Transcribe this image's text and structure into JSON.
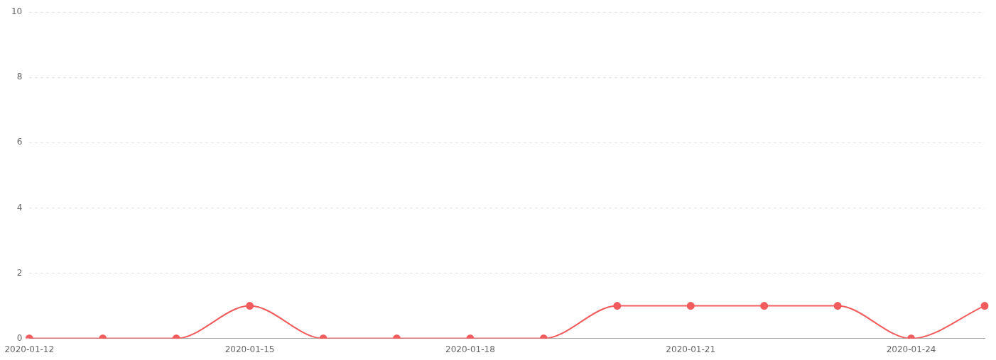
{
  "chart_data": {
    "type": "line",
    "categories": [
      "2020-01-12",
      null,
      null,
      "2020-01-15",
      null,
      null,
      "2020-01-18",
      null,
      null,
      "2020-01-21",
      null,
      null,
      "2020-01-24",
      null
    ],
    "series": [
      {
        "color": "#f25c5c",
        "values": [
          0,
          0,
          0,
          1,
          0,
          0,
          0,
          0,
          1,
          1,
          1,
          1,
          0,
          1
        ]
      }
    ],
    "ylim": [
      0,
      10
    ],
    "yticks": [
      0,
      2,
      4,
      6,
      8,
      10
    ],
    "grid": "y",
    "legend": false,
    "marker": "circle",
    "line_style": "solid"
  }
}
